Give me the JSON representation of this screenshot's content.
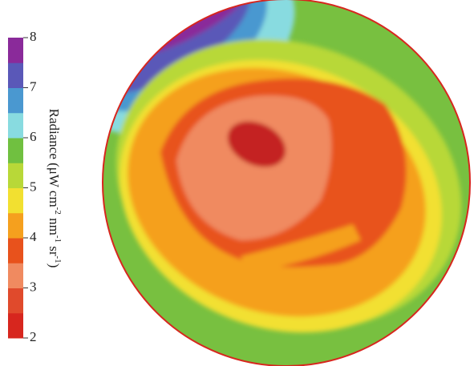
{
  "chart_data": {
    "type": "image",
    "colorbar": {
      "label_parts": [
        "Radiance  (μW cm",
        "-2",
        " nm",
        "-1",
        " sr",
        "-1",
        ")"
      ],
      "lim": [
        2,
        8
      ],
      "ticks": [
        2,
        3,
        4,
        5,
        6,
        7,
        8
      ],
      "colors": [
        "#d7261e",
        "#e04a2c",
        "#f08a60",
        "#e8521c",
        "#f5a01e",
        "#f2e030",
        "#b8d838",
        "#70c040",
        "#88dbe0",
        "#4a98d0",
        "#5a58b8",
        "#8a2a9a"
      ]
    }
  }
}
